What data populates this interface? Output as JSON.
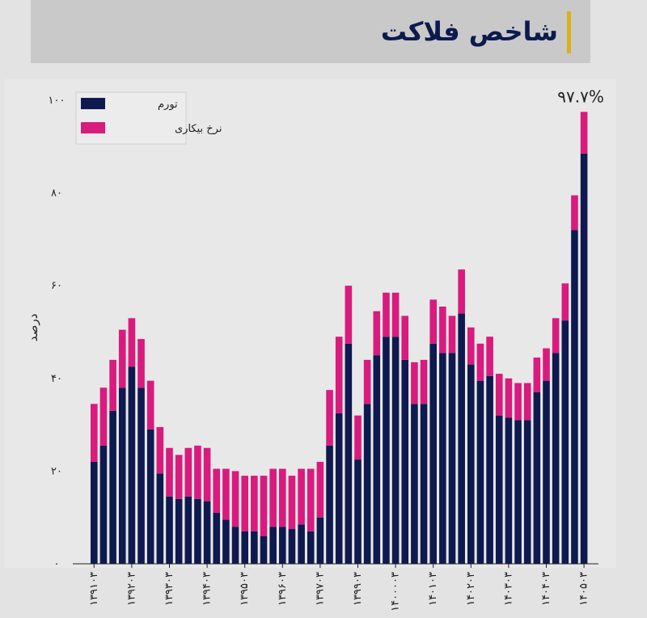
{
  "header": {
    "title": "شاخص فلاکت"
  },
  "colors": {
    "inflation": "#0e1a4f",
    "unemployment": "#d81b7d",
    "text": "#222222",
    "grid_line": "#222222"
  },
  "chart_data": {
    "type": "bar",
    "stacked": true,
    "title": "شاخص فلاکت",
    "ylabel": "درصد",
    "xlabel": "",
    "ylim": [
      0,
      100
    ],
    "yticks": [
      0,
      20,
      40,
      60,
      80,
      100
    ],
    "ytick_labels": [
      "۰",
      "۲۰",
      "۴۰",
      "۶۰",
      "۸۰",
      "۱۰۰"
    ],
    "grid": false,
    "legend_position": "top-left",
    "categories": [
      "۱۳۹۱۰۳",
      "",
      "",
      "",
      "۱۳۹۲۰۳",
      "",
      "",
      "",
      "۱۳۹۳۰۳",
      "",
      "",
      "",
      "۱۳۹۴۰۳",
      "",
      "",
      "",
      "۱۳۹۵۰۳",
      "",
      "",
      "",
      "۱۳۹۶۰۳",
      "",
      "",
      "",
      "۱۳۹۷۰۳",
      "",
      "",
      "",
      "۱۳۹۹۰۳",
      "",
      "",
      "",
      "۱۴۰۰۰۰۳",
      "",
      "",
      "",
      "۱۴۰۱۰۳",
      "",
      "",
      "",
      "۱۴۰۲۰۳",
      "",
      "",
      "",
      "۱۴۰۳۰۳",
      "",
      "",
      "",
      "۱۴۰۴۰۳",
      "",
      "",
      "",
      "۱۴۰۵۰۳"
    ],
    "series": [
      {
        "name": "تورم",
        "color": "#0e1a4f",
        "values": [
          22,
          25.5,
          33,
          38,
          42.5,
          38,
          29,
          19.5,
          14.5,
          14,
          14.5,
          14,
          13.5,
          11,
          9.5,
          8,
          7,
          7,
          6,
          8,
          8,
          7.5,
          8.5,
          7,
          10,
          25.5,
          32.5,
          47.5,
          22.5,
          34.5,
          45,
          49,
          49,
          44,
          34.5,
          34.5,
          47.5,
          45.5,
          45.5,
          54,
          43,
          39.5,
          40.5,
          32,
          31.5,
          31,
          31,
          37,
          39.5,
          45.5,
          52.5,
          72,
          88.5
        ]
      },
      {
        "name": "نرخ بیکاری",
        "color": "#d81b7d",
        "values": [
          12.5,
          12.5,
          11,
          12.5,
          10.5,
          10.5,
          10.5,
          10,
          10.5,
          9.5,
          10.5,
          11.5,
          11.5,
          9.5,
          11,
          12,
          12,
          12,
          13,
          12.5,
          12.5,
          11.5,
          12,
          13.5,
          12,
          12,
          16.5,
          12.5,
          9.5,
          9.5,
          9.5,
          9.5,
          9.5,
          9.5,
          9,
          9.5,
          9.5,
          10,
          8,
          9.5,
          8,
          8,
          8.5,
          9,
          8.5,
          8,
          8,
          7.5,
          7,
          7.5,
          8,
          7.5,
          9
        ]
      }
    ],
    "annotations": [
      {
        "category_index": 52,
        "text": "۹۷.۷%"
      }
    ]
  }
}
